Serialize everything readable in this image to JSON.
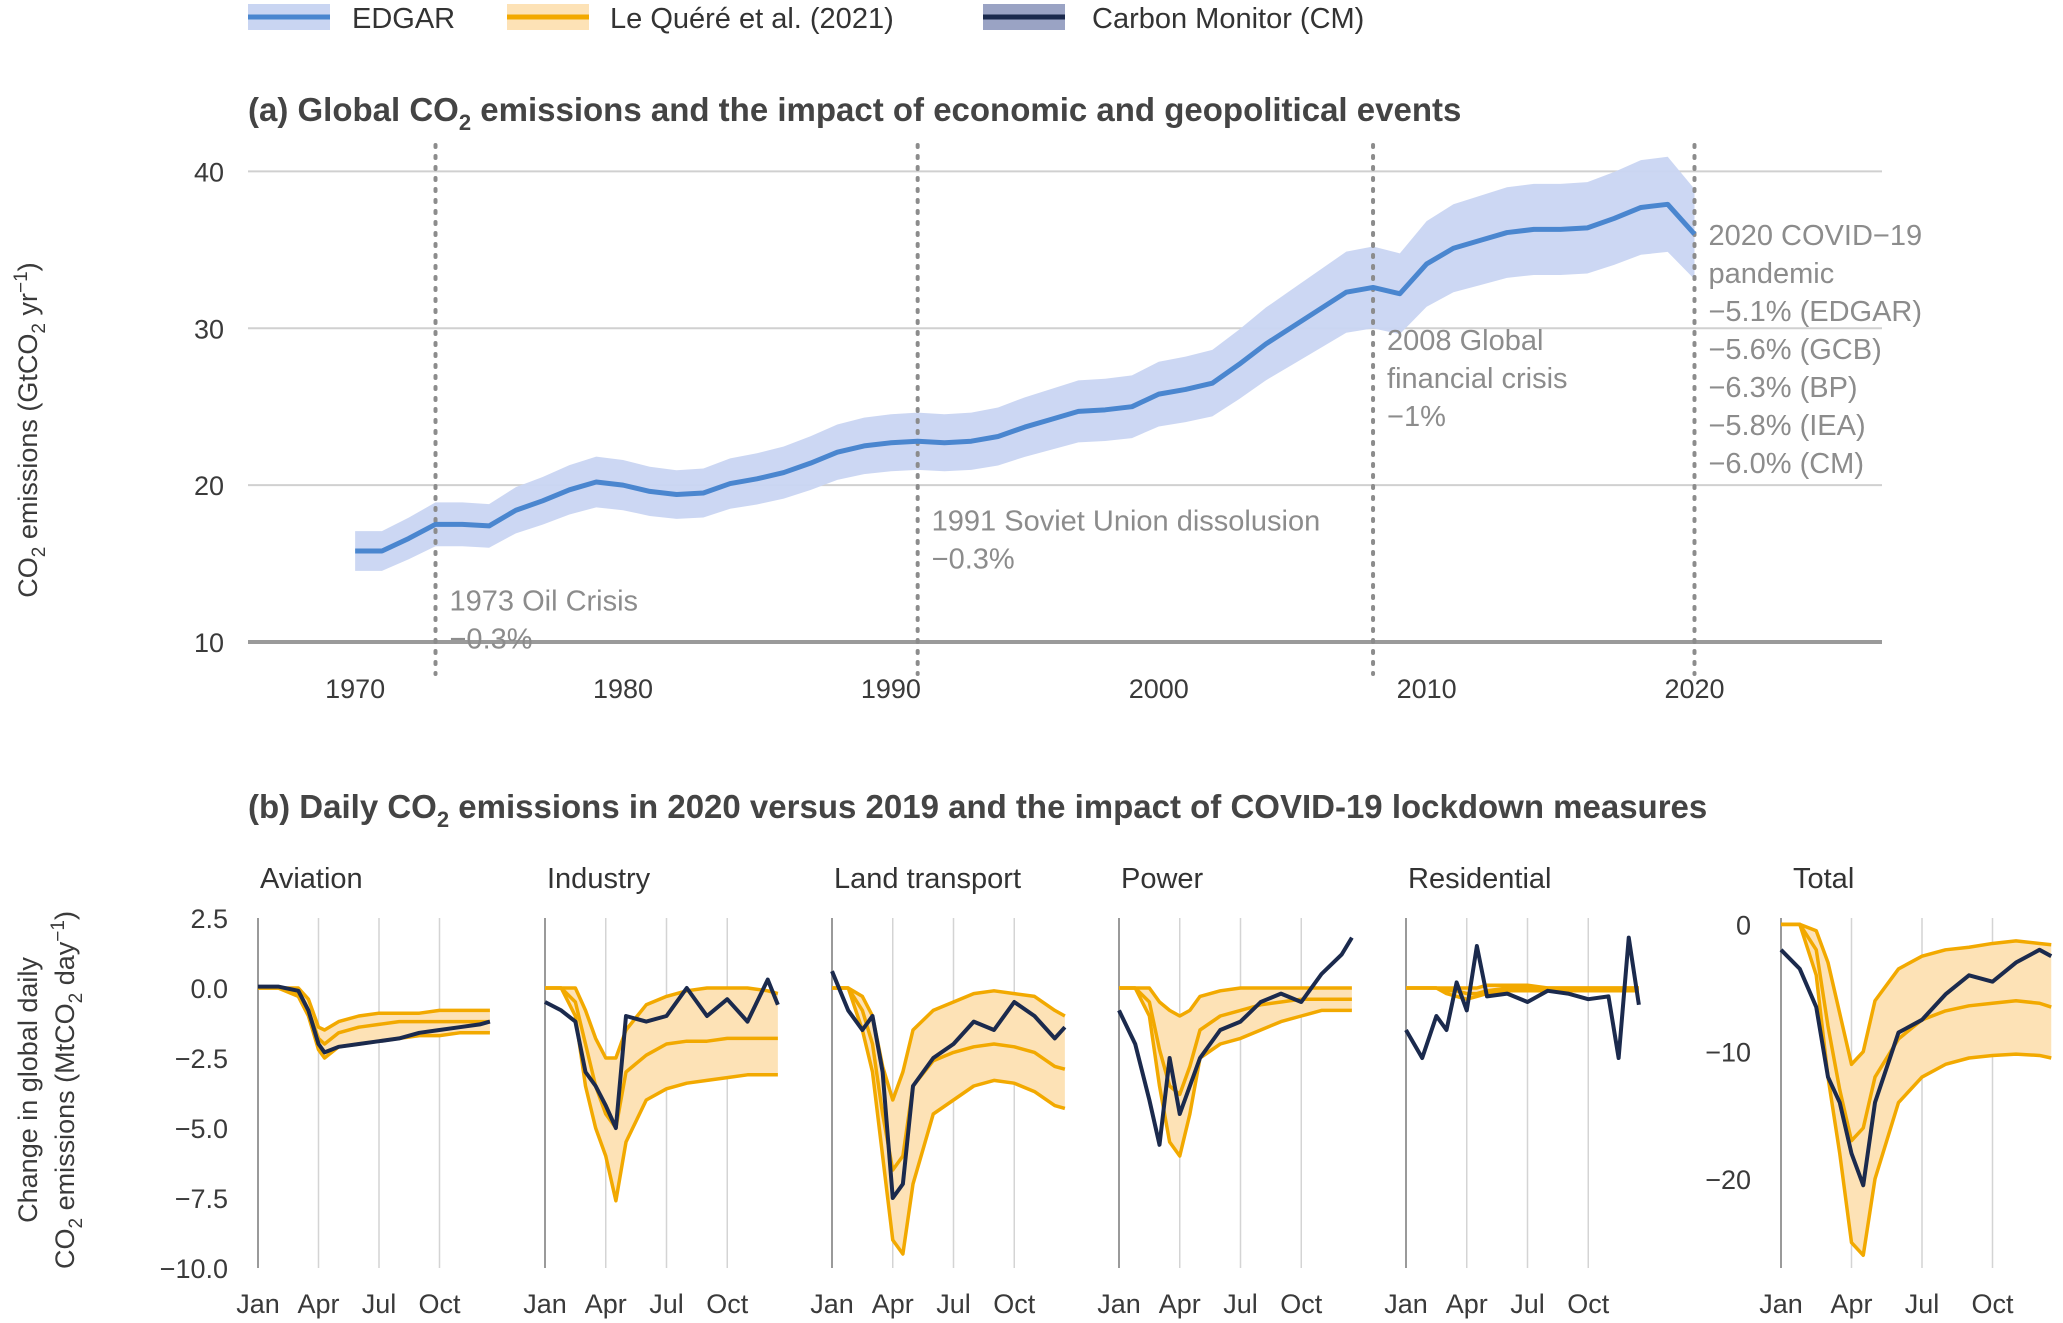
{
  "legend": [
    {
      "label": "EDGAR",
      "color": "#4a86cf",
      "band": "#c9d5f2"
    },
    {
      "label": "Le Quéré et al. (2021)",
      "color": "#f2a900",
      "band": "#fde2b6"
    },
    {
      "label": "Carbon Monitor (CM)",
      "color": "#1b2a4d",
      "band": "#9aa3c4"
    }
  ],
  "panel_a": {
    "title_pre": "(a) Global CO",
    "title_sub": "2",
    "title_post": " emissions and the impact of economic and geopolitical events",
    "ylabel_pre": "CO",
    "ylabel_sub": "2",
    "ylabel_mid": " emissions (GtCO",
    "ylabel_sub2": "2",
    "ylabel_post": " yr",
    "ylabel_sup": "−1",
    "ylabel_end": ")",
    "events": [
      {
        "year": 1973,
        "lines": [
          "1973 Oil Crisis",
          "−0.3%"
        ]
      },
      {
        "year": 1991,
        "lines": [
          "1991 Soviet Union dissolusion",
          "−0.3%"
        ]
      },
      {
        "year": 2008,
        "lines": [
          "2008 Global",
          "financial crisis",
          "−1%"
        ]
      },
      {
        "year": 2020,
        "lines": [
          "2020 COVID−19",
          "pandemic",
          "−5.1% (EDGAR)",
          "−5.6% (GCB)",
          "−6.3% (BP)",
          "−5.8% (IEA)",
          "−6.0% (CM)"
        ]
      }
    ]
  },
  "panel_b": {
    "title_pre": "(b) Daily CO",
    "title_sub": "2",
    "title_post": " emissions in 2020 versus 2019 and the impact of COVID-19 lockdown measures",
    "ylabel_line1": "Change in global daily",
    "ylabel_line2_pre": "CO",
    "ylabel_line2_sub": "2",
    "ylabel_line2_mid": " emissions (MtCO",
    "ylabel_line2_sub2": "2",
    "ylabel_line2_post": " day",
    "ylabel_line2_sup": "−1",
    "ylabel_line2_end": ")"
  },
  "chart_data": [
    {
      "type": "line",
      "id": "panel_a",
      "title": "(a) Global CO2 emissions and the impact of economic and geopolitical events",
      "ylabel": "CO2 emissions (GtCO2 yr−1)",
      "xlim": [
        1966,
        2027
      ],
      "ylim": [
        10,
        42
      ],
      "x_ticks": [
        1970,
        1980,
        1990,
        2000,
        2010,
        2020
      ],
      "y_ticks": [
        10,
        20,
        30,
        40
      ],
      "grid": "horizontal",
      "vlines": [
        1973,
        1991,
        2008,
        2020
      ],
      "series": [
        {
          "name": "EDGAR",
          "x": [
            1970,
            1971,
            1972,
            1973,
            1974,
            1975,
            1976,
            1977,
            1978,
            1979,
            1980,
            1981,
            1982,
            1983,
            1984,
            1985,
            1986,
            1987,
            1988,
            1989,
            1990,
            1991,
            1992,
            1993,
            1994,
            1995,
            1996,
            1997,
            1998,
            1999,
            2000,
            2001,
            2002,
            2003,
            2004,
            2005,
            2006,
            2007,
            2008,
            2009,
            2010,
            2011,
            2012,
            2013,
            2014,
            2015,
            2016,
            2017,
            2018,
            2019,
            2020
          ],
          "values": [
            15.8,
            15.8,
            16.6,
            17.5,
            17.5,
            17.4,
            18.4,
            19.0,
            19.7,
            20.2,
            20.0,
            19.6,
            19.4,
            19.5,
            20.1,
            20.4,
            20.8,
            21.4,
            22.1,
            22.5,
            22.7,
            22.8,
            22.7,
            22.8,
            23.1,
            23.7,
            24.2,
            24.7,
            24.8,
            25.0,
            25.8,
            26.1,
            26.5,
            27.7,
            29.0,
            30.1,
            31.2,
            32.3,
            32.6,
            32.2,
            34.1,
            35.1,
            35.6,
            36.1,
            36.3,
            36.3,
            36.4,
            37.0,
            37.7,
            37.9,
            36.0
          ],
          "band_pct": 0.08
        }
      ],
      "annotations": [
        "1973 Oil Crisis −0.3%",
        "1991 Soviet Union dissolusion −0.3%",
        "2008 Global financial crisis −1%",
        "2020 COVID−19 pandemic −5.1% (EDGAR) −5.6% (GCB) −6.3% (BP) −5.8% (IEA) −6.0% (CM)"
      ]
    },
    {
      "type": "line",
      "id": "panel_b",
      "title": "(b) Daily CO2 emissions in 2020 versus 2019 and the impact of COVID-19 lockdown measures",
      "ylabel": "Change in global daily CO2 emissions (MtCO2 day−1)",
      "x_ticks": [
        "Jan",
        "Apr",
        "Jul",
        "Oct"
      ],
      "subplots": [
        {
          "name": "Aviation",
          "ylim": [
            -10,
            2.5
          ],
          "y_ticks": [
            2.5,
            0.0,
            -2.5,
            -5.0,
            -7.5,
            -10.0
          ],
          "month": [
            0,
            1,
            2,
            2.5,
            3,
            3.3,
            4,
            5,
            6,
            7,
            8,
            9,
            10,
            11,
            11.5
          ],
          "lq_low": [
            0,
            0,
            -0.3,
            -1.0,
            -2.2,
            -2.5,
            -2.1,
            -2.0,
            -1.9,
            -1.8,
            -1.7,
            -1.7,
            -1.6,
            -1.6,
            -1.6
          ],
          "lq_mid": [
            0,
            0,
            -0.2,
            -0.8,
            -1.8,
            -2.0,
            -1.6,
            -1.4,
            -1.3,
            -1.2,
            -1.2,
            -1.2,
            -1.2,
            -1.2,
            -1.2
          ],
          "lq_high": [
            0,
            0,
            0,
            -0.4,
            -1.4,
            -1.5,
            -1.2,
            -1.0,
            -0.9,
            -0.9,
            -0.9,
            -0.8,
            -0.8,
            -0.8,
            -0.8
          ],
          "cm": [
            0.05,
            0.05,
            -0.1,
            -0.8,
            -2.0,
            -2.3,
            -2.1,
            -2.0,
            -1.9,
            -1.8,
            -1.6,
            -1.5,
            -1.4,
            -1.3,
            -1.2
          ]
        },
        {
          "name": "Industry",
          "ylim": [
            -10,
            2.5
          ],
          "month": [
            0,
            0.8,
            1.5,
            2,
            2.5,
            3,
            3.5,
            4,
            5,
            6,
            7,
            8,
            9,
            10,
            11,
            11.5
          ],
          "lq_low": [
            0,
            0,
            -1.0,
            -3.5,
            -5.0,
            -6.0,
            -7.6,
            -5.5,
            -4.0,
            -3.6,
            -3.4,
            -3.3,
            -3.2,
            -3.1,
            -3.1,
            -3.1
          ],
          "lq_mid": [
            0,
            0,
            -0.5,
            -2.0,
            -3.5,
            -4.5,
            -5.0,
            -3.0,
            -2.4,
            -2.0,
            -1.9,
            -1.9,
            -1.8,
            -1.8,
            -1.8,
            -1.8
          ],
          "lq_high": [
            0,
            0,
            0,
            -0.8,
            -1.8,
            -2.5,
            -2.5,
            -1.5,
            -0.6,
            -0.3,
            -0.1,
            0,
            0,
            0,
            -0.1,
            -0.2
          ],
          "cm": [
            -0.5,
            -0.8,
            -1.2,
            -3.0,
            -3.5,
            -4.2,
            -5.0,
            -1.0,
            -1.2,
            -1.0,
            0.0,
            -1.0,
            -0.4,
            -1.2,
            0.3,
            -0.6
          ]
        },
        {
          "name": "Land transport",
          "ylim": [
            -10,
            2.5
          ],
          "month": [
            0,
            0.8,
            1.5,
            2,
            2.5,
            3,
            3.5,
            4,
            5,
            6,
            7,
            8,
            9,
            10,
            11,
            11.5
          ],
          "lq_low": [
            0,
            0,
            -1.5,
            -3.0,
            -6.0,
            -9.0,
            -9.5,
            -7.0,
            -4.5,
            -4.0,
            -3.5,
            -3.3,
            -3.4,
            -3.7,
            -4.2,
            -4.3
          ],
          "lq_mid": [
            0,
            0,
            -0.8,
            -2.0,
            -4.5,
            -6.5,
            -6.0,
            -3.5,
            -2.6,
            -2.3,
            -2.1,
            -2.0,
            -2.1,
            -2.3,
            -2.8,
            -2.9
          ],
          "lq_high": [
            0,
            0,
            -0.3,
            -1.0,
            -2.8,
            -4.0,
            -3.0,
            -1.5,
            -0.8,
            -0.5,
            -0.2,
            -0.1,
            -0.2,
            -0.3,
            -0.8,
            -1.0
          ],
          "cm": [
            0.6,
            -0.8,
            -1.5,
            -1.0,
            -3.0,
            -7.5,
            -7.0,
            -3.5,
            -2.5,
            -2.0,
            -1.2,
            -1.5,
            -0.5,
            -1.0,
            -1.8,
            -1.4
          ]
        },
        {
          "name": "Power",
          "ylim": [
            -10,
            2.5
          ],
          "month": [
            0,
            0.8,
            1.5,
            2,
            2.5,
            3,
            3.5,
            4,
            5,
            6,
            7,
            8,
            9,
            10,
            11,
            11.5
          ],
          "lq_low": [
            0,
            0,
            -1.0,
            -3.5,
            -5.5,
            -6.0,
            -4.5,
            -2.5,
            -2.0,
            -1.8,
            -1.5,
            -1.2,
            -1.0,
            -0.8,
            -0.8,
            -0.8
          ],
          "lq_mid": [
            0,
            0,
            -0.5,
            -2.2,
            -3.5,
            -3.8,
            -2.8,
            -1.5,
            -1.0,
            -0.8,
            -0.6,
            -0.5,
            -0.4,
            -0.4,
            -0.4,
            -0.4
          ],
          "lq_high": [
            0,
            0,
            0,
            -0.5,
            -0.8,
            -1.0,
            -0.8,
            -0.3,
            -0.1,
            0,
            0,
            0,
            0,
            0,
            0,
            0
          ],
          "cm": [
            -0.8,
            -2.0,
            -4.0,
            -5.6,
            -2.5,
            -4.5,
            -3.5,
            -2.5,
            -1.5,
            -1.2,
            -0.5,
            -0.2,
            -0.5,
            0.5,
            1.2,
            1.8
          ]
        },
        {
          "name": "Residential",
          "ylim": [
            -10,
            2.5
          ],
          "month": [
            0,
            0.8,
            1.5,
            2,
            2.5,
            3,
            3.5,
            4,
            5,
            6,
            7,
            8,
            9,
            10,
            10.5,
            11,
            11.5
          ],
          "lq_low": [
            0,
            0,
            0,
            -0.2,
            -0.3,
            -0.4,
            -0.3,
            -0.2,
            -0.1,
            -0.1,
            -0.1,
            -0.1,
            -0.1,
            -0.1,
            -0.1,
            -0.1,
            -0.1
          ],
          "lq_mid": [
            0,
            0,
            0,
            -0.1,
            -0.1,
            -0.2,
            -0.2,
            -0.1,
            0,
            0,
            0,
            0,
            0,
            0,
            0,
            0,
            0
          ],
          "lq_high": [
            0,
            0,
            0,
            0,
            0,
            0,
            0,
            0.1,
            0.1,
            0.1,
            0,
            0,
            0,
            0,
            0,
            0,
            0
          ],
          "cm": [
            -1.5,
            -2.5,
            -1.0,
            -1.5,
            0.2,
            -0.8,
            1.5,
            -0.3,
            -0.2,
            -0.5,
            -0.1,
            -0.2,
            -0.4,
            -0.3,
            -2.5,
            1.8,
            -0.6
          ]
        },
        {
          "name": "Total",
          "ylim": [
            -27,
            0.5
          ],
          "y_ticks": [
            0,
            -10,
            -20
          ],
          "month": [
            0,
            0.8,
            1.5,
            2,
            2.5,
            3,
            3.5,
            4,
            5,
            6,
            7,
            8,
            9,
            10,
            11,
            11.5
          ],
          "lq_low": [
            0,
            0,
            -4.0,
            -12.0,
            -18.0,
            -25.0,
            -26.0,
            -20.0,
            -14.0,
            -12.0,
            -11.0,
            -10.5,
            -10.3,
            -10.2,
            -10.3,
            -10.5
          ],
          "lq_mid": [
            0,
            0,
            -2.0,
            -8.0,
            -13.0,
            -17.0,
            -16.0,
            -12.0,
            -9.0,
            -7.5,
            -6.8,
            -6.4,
            -6.2,
            -6.0,
            -6.2,
            -6.5
          ],
          "lq_high": [
            0,
            0,
            -0.5,
            -3.0,
            -7.0,
            -11.0,
            -10.0,
            -6.0,
            -3.5,
            -2.5,
            -2.0,
            -1.8,
            -1.5,
            -1.3,
            -1.5,
            -1.6
          ],
          "cm": [
            -2.0,
            -3.5,
            -6.5,
            -12.0,
            -14.0,
            -18.0,
            -20.5,
            -14.0,
            -8.5,
            -7.5,
            -5.5,
            -4.0,
            -4.5,
            -3.0,
            -2.0,
            -2.5
          ]
        }
      ]
    }
  ]
}
